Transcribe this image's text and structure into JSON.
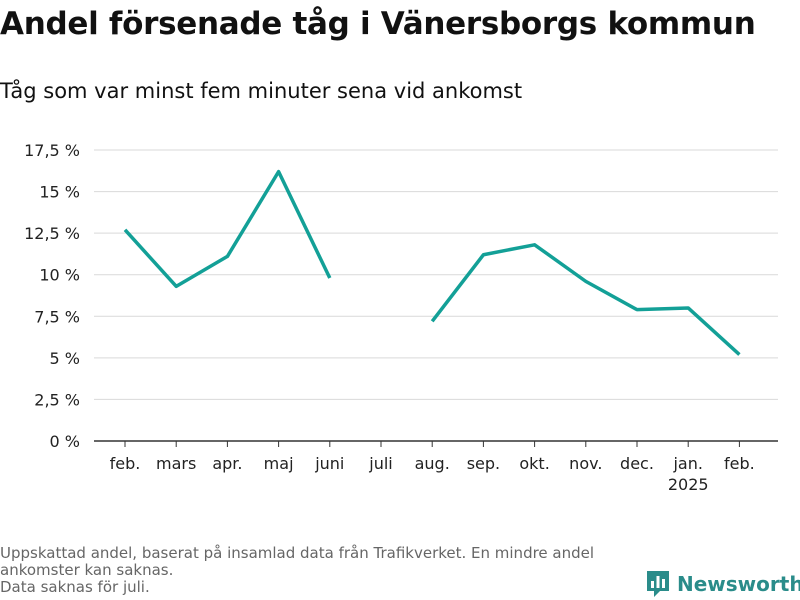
{
  "chart_data": {
    "type": "line",
    "title": "Andel försenade tåg i Vänersborgs kommun",
    "subtitle": "Tåg som var minst fem minuter sena vid ankomst",
    "categories": [
      "feb.",
      "mars",
      "apr.",
      "maj",
      "juni",
      "juli",
      "aug.",
      "sep.",
      "okt.",
      "nov.",
      "dec.",
      "jan.",
      "feb."
    ],
    "year_label": {
      "category_index": 11,
      "text": "2025"
    },
    "series": [
      {
        "values": [
          12.7,
          9.3,
          11.1,
          16.2,
          9.8,
          null,
          7.2,
          11.2,
          11.8,
          9.6,
          7.9,
          8.0,
          5.2
        ],
        "color": "#13a097"
      }
    ],
    "ylim": [
      0,
      17.5
    ],
    "yticks": [
      0,
      2.5,
      5,
      7.5,
      10,
      12.5,
      15,
      17.5
    ],
    "ytick_labels": [
      "0 %",
      "2,5 %",
      "5 %",
      "7,5 %",
      "10 %",
      "12,5 %",
      "15 %",
      "17,5 %"
    ],
    "grid": true
  },
  "footer": {
    "lines": [
      "Uppskattad andel, baserat på insamlad data från Trafikverket. En mindre andel",
      "ankomster kan saknas.",
      "Data saknas för juli."
    ]
  },
  "brand": {
    "name": "Newsworthy",
    "icon": "bar-chart-logo-icon",
    "color": "#2a8c8a"
  }
}
